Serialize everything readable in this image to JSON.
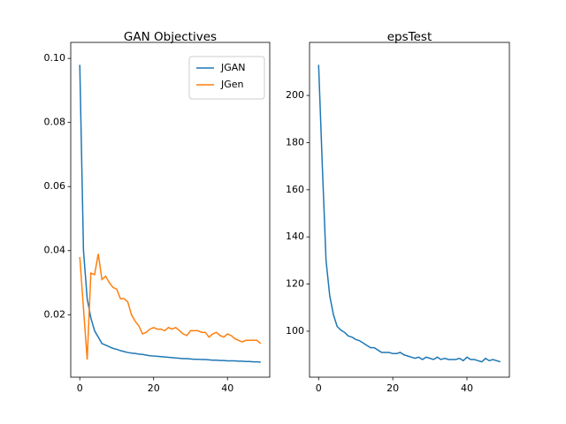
{
  "chart_data": [
    {
      "type": "line",
      "title": "GAN Objectives",
      "x": [
        0,
        1,
        2,
        3,
        4,
        5,
        6,
        7,
        8,
        9,
        10,
        11,
        12,
        13,
        14,
        15,
        16,
        17,
        18,
        19,
        20,
        21,
        22,
        23,
        24,
        25,
        26,
        27,
        28,
        29,
        30,
        31,
        32,
        33,
        34,
        35,
        36,
        37,
        38,
        39,
        40,
        41,
        42,
        43,
        44,
        45,
        46,
        47,
        48,
        49
      ],
      "series": [
        {
          "name": "JGAN",
          "color": "#1f77b4",
          "values": [
            0.098,
            0.04,
            0.025,
            0.019,
            0.015,
            0.013,
            0.011,
            0.0105,
            0.01,
            0.0095,
            0.0092,
            0.0088,
            0.0085,
            0.0082,
            0.008,
            0.0079,
            0.0077,
            0.0076,
            0.0074,
            0.0072,
            0.0071,
            0.007,
            0.0069,
            0.0068,
            0.0067,
            0.0066,
            0.0065,
            0.0064,
            0.0063,
            0.0063,
            0.0062,
            0.0061,
            0.0061,
            0.006,
            0.006,
            0.0059,
            0.0058,
            0.0058,
            0.0057,
            0.0057,
            0.0056,
            0.0056,
            0.0056,
            0.0055,
            0.0055,
            0.0054,
            0.0054,
            0.0053,
            0.0053,
            0.0052
          ]
        },
        {
          "name": "JGen",
          "color": "#ff7f0e",
          "values": [
            0.038,
            0.022,
            0.006,
            0.033,
            0.0325,
            0.039,
            0.031,
            0.032,
            0.03,
            0.0285,
            0.028,
            0.025,
            0.025,
            0.024,
            0.02,
            0.018,
            0.0165,
            0.014,
            0.0145,
            0.0155,
            0.016,
            0.0155,
            0.0155,
            0.015,
            0.016,
            0.0155,
            0.016,
            0.015,
            0.014,
            0.0135,
            0.015,
            0.015,
            0.015,
            0.0145,
            0.0145,
            0.013,
            0.014,
            0.0145,
            0.0135,
            0.013,
            0.014,
            0.0135,
            0.0125,
            0.012,
            0.0115,
            0.012,
            0.012,
            0.012,
            0.012,
            0.011
          ]
        }
      ],
      "xlim": [
        -2.45,
        51.45
      ],
      "xticks": [
        0,
        20,
        40
      ],
      "ylim": [
        0.0005,
        0.105
      ],
      "yticks": [
        0.02,
        0.04,
        0.06,
        0.08,
        {
          "value": 0.1,
          "label": "0.10"
        }
      ],
      "legend": "upper right"
    },
    {
      "type": "line",
      "title": "epsTest",
      "x": [
        0,
        1,
        2,
        3,
        4,
        5,
        6,
        7,
        8,
        9,
        10,
        11,
        12,
        13,
        14,
        15,
        16,
        17,
        18,
        19,
        20,
        21,
        22,
        23,
        24,
        25,
        26,
        27,
        28,
        29,
        30,
        31,
        32,
        33,
        34,
        35,
        36,
        37,
        38,
        39,
        40,
        41,
        42,
        43,
        44,
        45,
        46,
        47,
        48,
        49
      ],
      "series": [
        {
          "color": "#1f77b4",
          "values": [
            213,
            170,
            130,
            115,
            107,
            102,
            100.5,
            99.5,
            98,
            97.5,
            96.5,
            96,
            95,
            94,
            93,
            93,
            92,
            91,
            91,
            91,
            90.5,
            90.5,
            91,
            90,
            89.5,
            89,
            88.5,
            89,
            88,
            89,
            88.5,
            88,
            89,
            88,
            88.5,
            88,
            88,
            88,
            88.5,
            87.5,
            89,
            88,
            88,
            87.5,
            87,
            88.5,
            87.5,
            88,
            87.5,
            87
          ]
        }
      ],
      "xlim": [
        -2.45,
        51.45
      ],
      "xticks": [
        0,
        20,
        40
      ],
      "ylim": [
        80.5,
        222.5
      ],
      "yticks": [
        100,
        120,
        140,
        160,
        180,
        200
      ]
    }
  ]
}
